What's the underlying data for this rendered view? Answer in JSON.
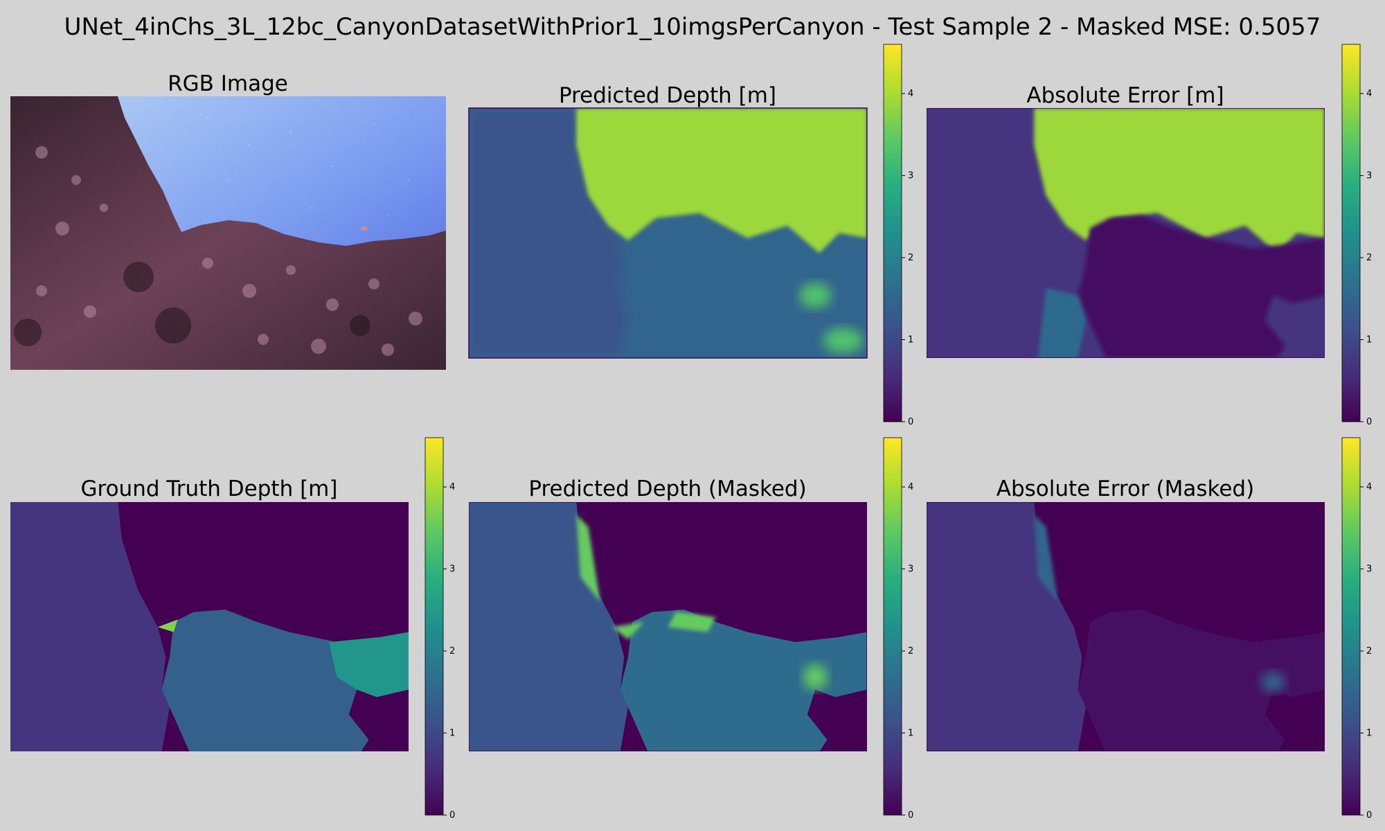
{
  "figure": {
    "title": "UNet_4inChs_3L_12bc_CanyonDatasetWithPrior1_10imgsPerCanyon - Test Sample 2 - Masked MSE: 0.5057"
  },
  "colors": {
    "background": "#d3d3d3",
    "water_light": "#9fc3f4",
    "water_deep": "#4a5fe0",
    "rock_dark": "#2a1a22",
    "rock_pink": "#a66a88",
    "colormap": "viridis"
  },
  "chart_data": [
    {
      "type": "image",
      "title": "RGB Image",
      "content": "underwater canyon photo"
    },
    {
      "type": "heatmap",
      "title": "Predicted Depth [m]",
      "colorbar": {
        "ticks": [
          0,
          1,
          2,
          3,
          4
        ],
        "range": [
          0,
          4.6
        ],
        "colormap": "viridis"
      },
      "regions": {
        "open_water": 3.9,
        "left_rock": 1.2,
        "lower_rock": 1.5,
        "bright_spots": 3.3
      }
    },
    {
      "type": "heatmap",
      "title": "Absolute Error [m]",
      "colorbar": {
        "ticks": [
          0,
          1,
          2,
          3,
          4
        ],
        "range": [
          0,
          4.6
        ],
        "colormap": "viridis"
      },
      "regions": {
        "open_water": 3.9,
        "left_rock": 0.7,
        "center_rock": 0.2,
        "lower_left": 1.6
      }
    },
    {
      "type": "heatmap",
      "title": "Ground Truth Depth [m]",
      "colorbar": {
        "ticks": [
          0,
          1,
          2,
          3,
          4
        ],
        "range": [
          0,
          4.6
        ],
        "colormap": "viridis"
      },
      "regions": {
        "masked": 0.0,
        "left_wall": 0.7,
        "center_rock": 1.4,
        "right_rock": 2.4,
        "edge": 3.7
      }
    },
    {
      "type": "heatmap",
      "title": "Predicted Depth (Masked)",
      "colorbar": {
        "ticks": [
          0,
          1,
          2,
          3,
          4
        ],
        "range": [
          0,
          4.6
        ],
        "colormap": "viridis"
      },
      "regions": {
        "masked": 0.0,
        "left_rock": 1.2,
        "center_rock": 1.6,
        "edges": 3.5
      }
    },
    {
      "type": "heatmap",
      "title": "Absolute Error (Masked)",
      "colorbar": {
        "ticks": [
          0,
          1,
          2,
          3,
          4
        ],
        "range": [
          0,
          4.6
        ],
        "colormap": "viridis"
      },
      "regions": {
        "masked": 0.0,
        "left_rock": 0.7,
        "center_rock": 0.2,
        "edges": 1.5
      }
    }
  ]
}
